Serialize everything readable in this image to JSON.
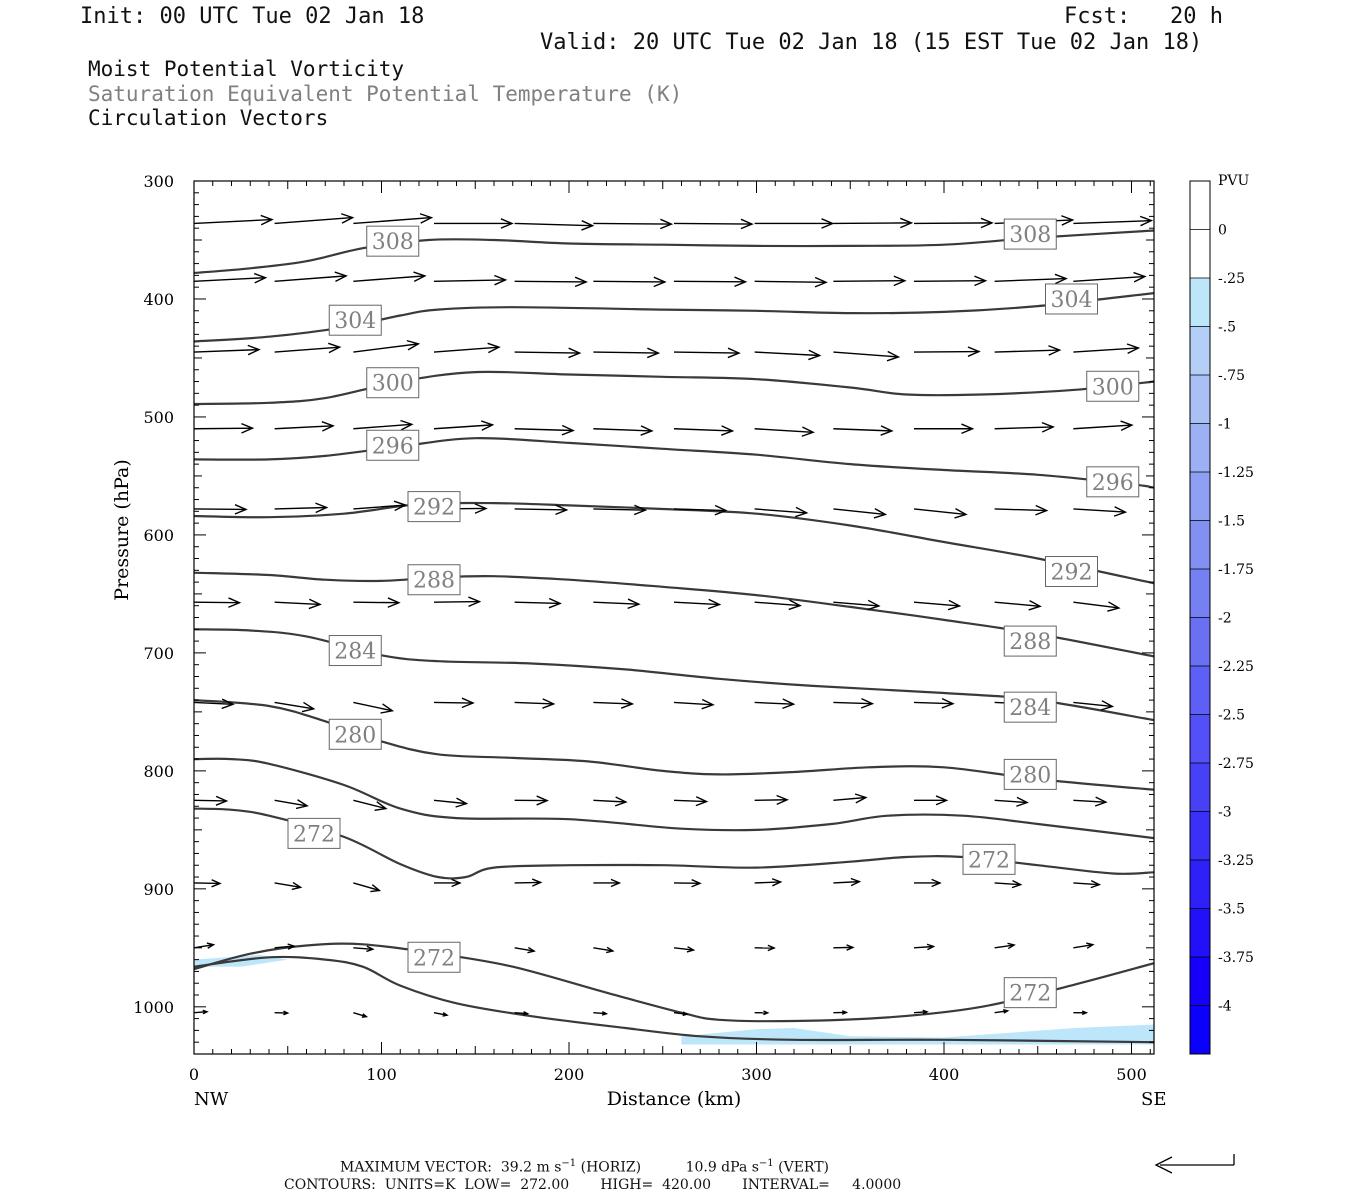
{
  "header": {
    "init": "Init: 00 UTC Tue 02 Jan 18",
    "fcst": "Fcst:   20 h",
    "valid": "Valid: 20 UTC Tue 02 Jan 18 (15 EST Tue 02 Jan 18)"
  },
  "fields": {
    "mpv": "Moist Potential Vorticity",
    "theta": "Saturation Equivalent Potential Temperature (K)",
    "vectors": "Circulation Vectors"
  },
  "colors": {
    "contour": "#3a3a3a",
    "theta_label": "#808080",
    "mpv_fill": "#bde6fb"
  },
  "chart_data": {
    "type": "cross-section contour",
    "xlabel": "Distance (km)",
    "ylabel": "Pressure (hPa)",
    "xlim": [
      0,
      512
    ],
    "ylim_pressure": [
      1040,
      300
    ],
    "x_ticks": [
      0,
      100,
      200,
      300,
      400,
      500
    ],
    "y_ticks": [
      300,
      400,
      500,
      600,
      700,
      800,
      900,
      1000
    ],
    "x_end_labels": {
      "left": "NW",
      "right": "SE"
    },
    "contour_units": "K",
    "contours": [
      {
        "level": 308,
        "points": [
          [
            0,
            378
          ],
          [
            30,
            374
          ],
          [
            60,
            368
          ],
          [
            90,
            357
          ],
          [
            125,
            350
          ],
          [
            160,
            350
          ],
          [
            200,
            353
          ],
          [
            250,
            354
          ],
          [
            300,
            355
          ],
          [
            350,
            355
          ],
          [
            400,
            354
          ],
          [
            450,
            348
          ],
          [
            512,
            342
          ]
        ]
      },
      {
        "level": 304,
        "points": [
          [
            0,
            436
          ],
          [
            40,
            432
          ],
          [
            80,
            424
          ],
          [
            110,
            414
          ],
          [
            130,
            409
          ],
          [
            170,
            407
          ],
          [
            250,
            409
          ],
          [
            300,
            410
          ],
          [
            350,
            412
          ],
          [
            400,
            411
          ],
          [
            450,
            406
          ],
          [
            512,
            395
          ]
        ]
      },
      {
        "level": 300,
        "points": [
          [
            0,
            489
          ],
          [
            40,
            488
          ],
          [
            70,
            484
          ],
          [
            110,
            470
          ],
          [
            150,
            462
          ],
          [
            200,
            464
          ],
          [
            250,
            466
          ],
          [
            300,
            468
          ],
          [
            350,
            475
          ],
          [
            380,
            481
          ],
          [
            420,
            481
          ],
          [
            470,
            477
          ],
          [
            512,
            470
          ]
        ]
      },
      {
        "level": 296,
        "points": [
          [
            0,
            536
          ],
          [
            40,
            536
          ],
          [
            70,
            533
          ],
          [
            110,
            525
          ],
          [
            150,
            518
          ],
          [
            200,
            522
          ],
          [
            250,
            527
          ],
          [
            300,
            532
          ],
          [
            350,
            540
          ],
          [
            400,
            545
          ],
          [
            450,
            549
          ],
          [
            500,
            557
          ],
          [
            512,
            560
          ]
        ]
      },
      {
        "level": 292,
        "points": [
          [
            0,
            584
          ],
          [
            40,
            585
          ],
          [
            80,
            582
          ],
          [
            120,
            574
          ],
          [
            160,
            573
          ],
          [
            200,
            575
          ],
          [
            250,
            578
          ],
          [
            300,
            582
          ],
          [
            350,
            592
          ],
          [
            400,
            606
          ],
          [
            450,
            620
          ],
          [
            512,
            641
          ]
        ]
      },
      {
        "level": 288,
        "points": [
          [
            0,
            632
          ],
          [
            40,
            634
          ],
          [
            70,
            638
          ],
          [
            100,
            639
          ],
          [
            130,
            636
          ],
          [
            160,
            635
          ],
          [
            200,
            638
          ],
          [
            250,
            644
          ],
          [
            300,
            651
          ],
          [
            350,
            661
          ],
          [
            400,
            672
          ],
          [
            450,
            684
          ],
          [
            512,
            703
          ]
        ]
      },
      {
        "level": 284,
        "points": [
          [
            0,
            680
          ],
          [
            30,
            681
          ],
          [
            60,
            686
          ],
          [
            100,
            702
          ],
          [
            130,
            707
          ],
          [
            180,
            709
          ],
          [
            230,
            714
          ],
          [
            280,
            722
          ],
          [
            330,
            728
          ],
          [
            400,
            734
          ],
          [
            450,
            740
          ],
          [
            512,
            757
          ]
        ]
      },
      {
        "level": 280,
        "points": [
          [
            0,
            740
          ],
          [
            40,
            745
          ],
          [
            70,
            758
          ],
          [
            100,
            775
          ],
          [
            130,
            786
          ],
          [
            170,
            789
          ],
          [
            210,
            792
          ],
          [
            250,
            800
          ],
          [
            280,
            803
          ],
          [
            320,
            801
          ],
          [
            360,
            797
          ],
          [
            400,
            797
          ],
          [
            450,
            807
          ],
          [
            512,
            816
          ]
        ]
      },
      {
        "level": 276,
        "points": [
          [
            0,
            790
          ],
          [
            20,
            790
          ],
          [
            40,
            794
          ],
          [
            80,
            812
          ],
          [
            110,
            832
          ],
          [
            140,
            840
          ],
          [
            200,
            841
          ],
          [
            260,
            849
          ],
          [
            300,
            850
          ],
          [
            340,
            845
          ],
          [
            370,
            838
          ],
          [
            410,
            838
          ],
          [
            450,
            845
          ],
          [
            512,
            857
          ]
        ]
      },
      {
        "level": 272,
        "points": [
          [
            0,
            832
          ],
          [
            20,
            833
          ],
          [
            40,
            838
          ],
          [
            80,
            856
          ],
          [
            110,
            879
          ],
          [
            130,
            890
          ],
          [
            145,
            890
          ],
          [
            160,
            882
          ],
          [
            200,
            880
          ],
          [
            250,
            880
          ],
          [
            300,
            882
          ],
          [
            350,
            877
          ],
          [
            380,
            873
          ],
          [
            410,
            873
          ],
          [
            450,
            880
          ],
          [
            490,
            887
          ],
          [
            512,
            886
          ]
        ]
      },
      {
        "level": 272,
        "points": [
          [
            0,
            968
          ],
          [
            30,
            955
          ],
          [
            60,
            948
          ],
          [
            90,
            947
          ],
          [
            130,
            955
          ],
          [
            170,
            966
          ],
          [
            220,
            988
          ],
          [
            260,
            1005
          ],
          [
            280,
            1011
          ],
          [
            320,
            1012
          ],
          [
            370,
            1009
          ],
          [
            420,
            1000
          ],
          [
            470,
            981
          ],
          [
            512,
            963
          ]
        ]
      },
      {
        "level": 0,
        "points": [
          [
            0,
            966
          ],
          [
            40,
            958
          ],
          [
            70,
            960
          ],
          [
            90,
            966
          ],
          [
            110,
            982
          ],
          [
            140,
            997
          ],
          [
            180,
            1008
          ],
          [
            230,
            1018
          ],
          [
            270,
            1025
          ],
          [
            320,
            1028
          ],
          [
            400,
            1028
          ],
          [
            512,
            1030
          ]
        ]
      }
    ],
    "contour_labels": [
      {
        "text": "308",
        "x": 106,
        "p": 351
      },
      {
        "text": "308",
        "x": 446,
        "p": 345
      },
      {
        "text": "304",
        "x": 86,
        "p": 418
      },
      {
        "text": "304",
        "x": 468,
        "p": 400
      },
      {
        "text": "300",
        "x": 106,
        "p": 471
      },
      {
        "text": "300",
        "x": 490,
        "p": 474
      },
      {
        "text": "296",
        "x": 106,
        "p": 524
      },
      {
        "text": "296",
        "x": 490,
        "p": 555
      },
      {
        "text": "292",
        "x": 128,
        "p": 576
      },
      {
        "text": "292",
        "x": 468,
        "p": 631
      },
      {
        "text": "288",
        "x": 128,
        "p": 638
      },
      {
        "text": "288",
        "x": 446,
        "p": 690
      },
      {
        "text": "284",
        "x": 86,
        "p": 698
      },
      {
        "text": "284",
        "x": 446,
        "p": 746
      },
      {
        "text": "280",
        "x": 86,
        "p": 769
      },
      {
        "text": "280",
        "x": 446,
        "p": 803
      },
      {
        "text": "272",
        "x": 64,
        "p": 853
      },
      {
        "text": "272",
        "x": 424,
        "p": 875
      },
      {
        "text": "272",
        "x": 128,
        "p": 958
      },
      {
        "text": "272",
        "x": 446,
        "p": 988
      }
    ],
    "mpv_regions": [
      {
        "points": [
          [
            0,
            960
          ],
          [
            35,
            956
          ],
          [
            50,
            960
          ],
          [
            25,
            966
          ],
          [
            0,
            966
          ]
        ]
      },
      {
        "points": [
          [
            260,
            1025
          ],
          [
            300,
            1019
          ],
          [
            320,
            1018
          ],
          [
            350,
            1025
          ],
          [
            400,
            1026
          ],
          [
            470,
            1018
          ],
          [
            512,
            1015
          ],
          [
            512,
            1032
          ],
          [
            260,
            1032
          ]
        ]
      }
    ],
    "vector_rows": [
      {
        "p": 336,
        "x": [
          0,
          43,
          85,
          128,
          171,
          213,
          256,
          299,
          341,
          384,
          427,
          469
        ]
      },
      {
        "p": 385,
        "x": [
          0,
          43,
          85,
          128,
          171,
          213,
          256,
          299,
          341,
          384,
          427,
          469
        ]
      },
      {
        "p": 445,
        "x": [
          0,
          43,
          85,
          128,
          171,
          213,
          256,
          299,
          341,
          384,
          427,
          469
        ]
      },
      {
        "p": 510,
        "x": [
          0,
          43,
          85,
          128,
          171,
          213,
          256,
          299,
          341,
          384,
          427,
          469
        ]
      },
      {
        "p": 578,
        "x": [
          0,
          43,
          85,
          128,
          171,
          213,
          256,
          299,
          341,
          384,
          427,
          469
        ]
      },
      {
        "p": 657,
        "x": [
          0,
          43,
          85,
          128,
          171,
          213,
          256,
          299,
          341,
          384,
          427,
          469
        ]
      },
      {
        "p": 742,
        "x": [
          0,
          43,
          85,
          128,
          171,
          213,
          256,
          299,
          341,
          384,
          427,
          469
        ]
      },
      {
        "p": 825,
        "x": [
          0,
          43,
          85,
          128,
          171,
          213,
          256,
          299,
          341,
          384,
          427,
          469
        ]
      },
      {
        "p": 895,
        "x": [
          0,
          43,
          85,
          128,
          171,
          213,
          256,
          299,
          341,
          384,
          427,
          469
        ]
      },
      {
        "p": 950,
        "x": [
          0,
          43,
          85,
          128,
          171,
          213,
          256,
          299,
          341,
          384,
          427,
          469
        ]
      },
      {
        "p": 1005,
        "x": [
          0,
          43,
          85,
          128,
          171,
          213,
          256,
          299,
          341,
          384,
          427,
          469
        ]
      }
    ],
    "colorbar": {
      "unit": "PVU",
      "labels": [
        "0",
        "-.25",
        "-.5",
        "-.75",
        "-1",
        "-1.25",
        "-1.5",
        "-1.75",
        "-2",
        "-2.25",
        "-2.5",
        "-2.75",
        "-3",
        "-3.25",
        "-3.5",
        "-3.75",
        "-4"
      ],
      "colors": [
        "#ffffff",
        "#ffffff",
        "#bde6fb",
        "#b3cff8",
        "#a9c0f6",
        "#9cb0f4",
        "#8f9ff3",
        "#8390f3",
        "#7580f3",
        "#6a70f4",
        "#5e60f5",
        "#5250f6",
        "#4640f7",
        "#3a30f8",
        "#2e20f9",
        "#2210fa",
        "#1600fb",
        "#0a00fc"
      ]
    }
  },
  "footer": {
    "maxvec_prefix": "MAXIMUM VECTOR:  39.2 m s",
    "maxvec_h_unit": "(HORIZ)",
    "maxvec_vert_prefix": "10.9 dPa s",
    "maxvec_v_unit": "(VERT)",
    "exponent": "−1",
    "contours": "CONTOURS:  UNITS=K  LOW=  272.00       HIGH=  420.00       INTERVAL=     4.0000"
  }
}
